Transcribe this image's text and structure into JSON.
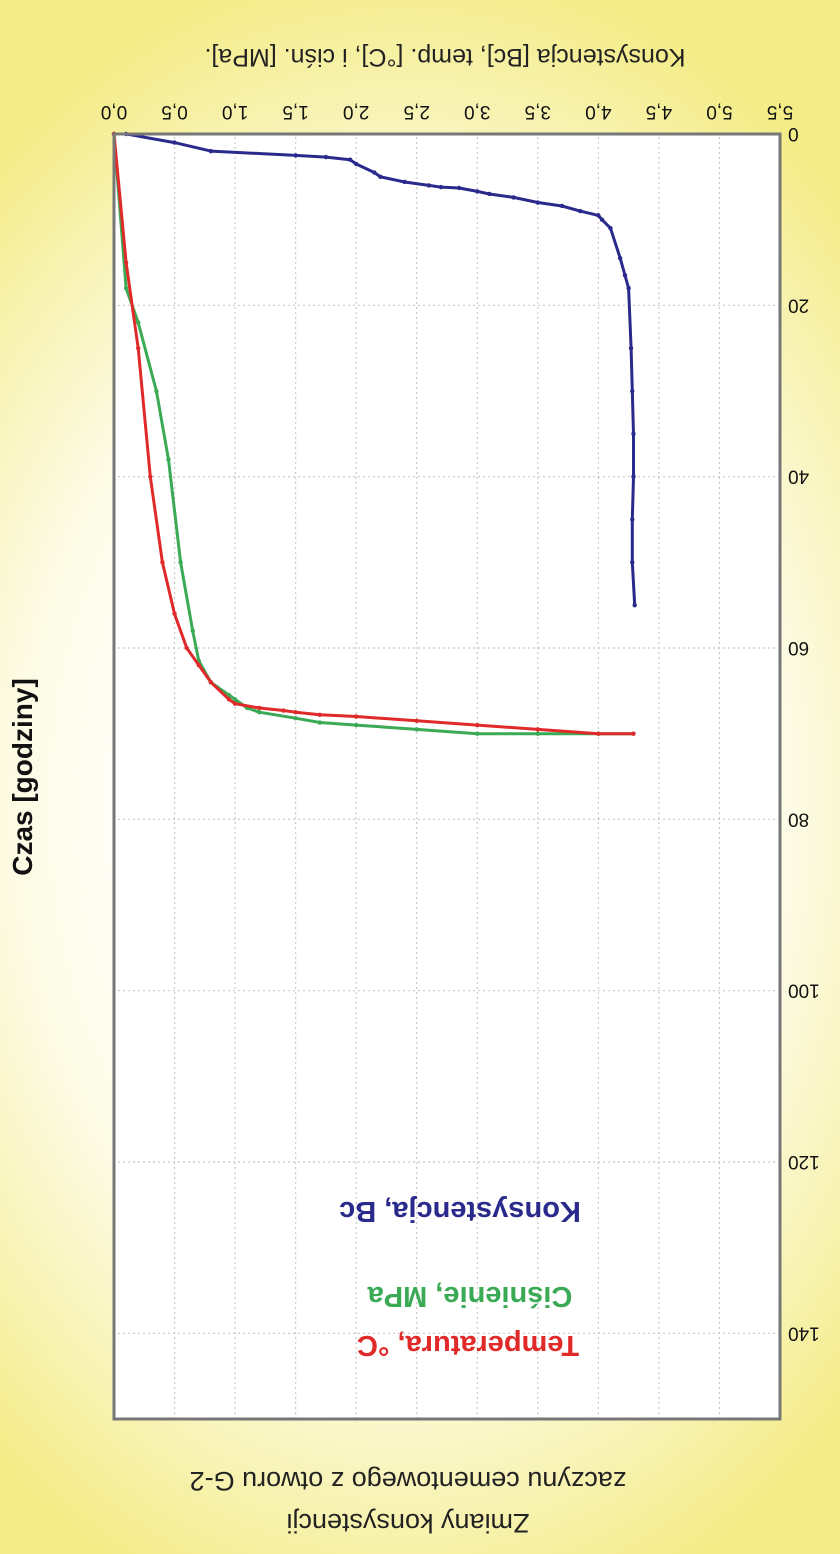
{
  "chart_data": {
    "type": "line",
    "title_line1": "Zmiany konsystencji",
    "title_line2": "zaczynu cementowego z otworu G-2",
    "xlabel": "Czas [godziny]",
    "ylabel": "Konsystencja [Bc], temp. [°C], i ciśn. [MPa].",
    "x_range": [
      0,
      5.5
    ],
    "y_range": [
      0,
      150
    ],
    "x_ticks": [
      "0,0",
      "0,5",
      "1,0",
      "1,5",
      "2,0",
      "2,5",
      "3,0",
      "3,5",
      "4,0",
      "4,5",
      "5,0",
      "5,5"
    ],
    "y_ticks": [
      "0",
      "20",
      "40",
      "60",
      "80",
      "100",
      "120",
      "140"
    ],
    "grid": true,
    "legend": [
      "Konsystencja, Bc",
      "Ciśnienie, MPa",
      "Temperatura, °C"
    ],
    "series": [
      {
        "name": "Konsystencja, Bc",
        "color": "#2a2a8c",
        "x": [
          0.0,
          0.1,
          0.5,
          0.8,
          1.5,
          1.75,
          1.95,
          2.0,
          2.15,
          2.2,
          2.4,
          2.6,
          2.7,
          2.85,
          3.0,
          3.1,
          3.3,
          3.5,
          3.7,
          3.85,
          4.0,
          4.03,
          4.1,
          4.18,
          4.22,
          4.25,
          4.27,
          4.28,
          4.29,
          4.29,
          4.28,
          4.28,
          4.3
        ],
        "y": [
          0,
          0,
          1,
          2,
          2.5,
          2.7,
          3,
          3.5,
          4.5,
          5,
          5.6,
          6,
          6.2,
          6.3,
          6.7,
          7.0,
          7.4,
          8,
          8.4,
          9,
          9.5,
          10,
          11,
          14.5,
          16.5,
          18,
          25,
          30,
          35,
          40,
          45,
          50,
          55
        ]
      },
      {
        "name": "Ciśnienie, MPa",
        "color": "#3aaa55",
        "x": [
          0,
          0.1,
          0.2,
          0.35,
          0.45,
          0.55,
          0.65,
          0.7,
          0.8,
          0.95,
          1.0,
          1.1,
          1.2,
          1.5,
          1.7,
          2.0,
          2.5,
          3.0,
          3.5,
          4.0,
          4.29
        ],
        "y": [
          0,
          18,
          22,
          30,
          38,
          50,
          58,
          61.5,
          64,
          65.5,
          66,
          67,
          67.5,
          68.2,
          68.7,
          69,
          69.5,
          70,
          70,
          70,
          70
        ]
      },
      {
        "name": "Temperatura, °C",
        "color": "#e02a2a",
        "x": [
          0,
          0.1,
          0.2,
          0.3,
          0.4,
          0.5,
          0.6,
          0.7,
          0.8,
          0.95,
          1.0,
          1.2,
          1.4,
          1.5,
          1.7,
          2.0,
          2.5,
          3.0,
          3.5,
          4.0,
          4.29
        ],
        "y": [
          0,
          15,
          25,
          40,
          50,
          56,
          60,
          62,
          64,
          66,
          66.5,
          67,
          67.3,
          67.5,
          67.8,
          68,
          68.5,
          69,
          69.5,
          70,
          70
        ]
      }
    ],
    "legend_colors": [
      "#2a2a8c",
      "#3aaa55",
      "#e02a2a"
    ]
  }
}
